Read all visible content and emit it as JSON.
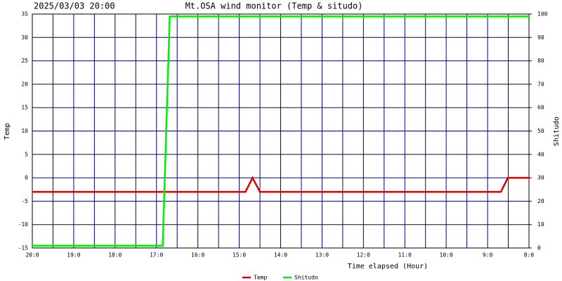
{
  "chart_data": {
    "type": "line",
    "title": "Mt.OSA wind monitor (Temp & situdo)",
    "subtitle": "2025/03/03 20:00",
    "ylabel": "Temp",
    "y2label": "Shitudo",
    "xlabel": "Time elapsed (Hour)",
    "xlim": [
      0,
      12
    ],
    "xticks": [
      {
        "value": 0,
        "label": "20:0"
      },
      {
        "value": 1,
        "label": "19:0"
      },
      {
        "value": 2,
        "label": "18:0"
      },
      {
        "value": 3,
        "label": "17:0"
      },
      {
        "value": 4,
        "label": "16:0"
      },
      {
        "value": 5,
        "label": "15:0"
      },
      {
        "value": 6,
        "label": "14:0"
      },
      {
        "value": 7,
        "label": "13:0"
      },
      {
        "value": 8,
        "label": "12:0"
      },
      {
        "value": 9,
        "label": "11:0"
      },
      {
        "value": 10,
        "label": "10:0"
      },
      {
        "value": 11,
        "label": "9:0"
      },
      {
        "value": 12,
        "label": "8:0"
      }
    ],
    "ylim": [
      -15,
      35
    ],
    "yticks": [
      -15,
      -10,
      -5,
      0,
      5,
      10,
      15,
      20,
      25,
      30,
      35
    ],
    "y2lim": [
      0,
      100
    ],
    "y2ticks": [
      0,
      10,
      20,
      30,
      40,
      50,
      60,
      70,
      80,
      90,
      100
    ],
    "grid": true,
    "grid_color": "#000080",
    "legend": "bottom",
    "series": [
      {
        "name": "Temp",
        "color": "#dd0000",
        "x": [
          0,
          5.15,
          5.32,
          5.5,
          11.32,
          11.49,
          12
        ],
        "values": [
          -3,
          -3,
          0,
          -3,
          -3,
          0,
          0
        ]
      },
      {
        "name": "Shitudo",
        "color": "#00ee00",
        "axis": "y2",
        "x": [
          0,
          3.15,
          3.32,
          12
        ],
        "values": [
          1,
          1,
          99,
          99
        ]
      }
    ]
  }
}
